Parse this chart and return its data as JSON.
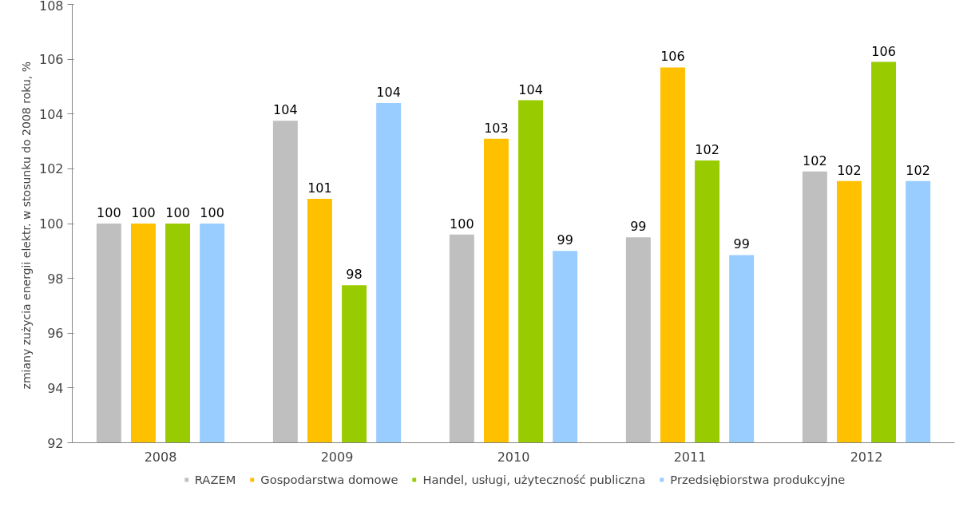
{
  "chart_data": {
    "type": "bar",
    "ylabel": "zmiany  zużycia energii elektr. w stosunku do 2008 roku, %",
    "categories": [
      "2008",
      "2009",
      "2010",
      "2011",
      "2012"
    ],
    "series": [
      {
        "name": "RAZEM",
        "color": "#bfbfbf",
        "values": [
          100,
          103.75,
          99.6,
          99.5,
          101.9
        ],
        "value_labels": [
          "100",
          "104",
          "100",
          "99",
          "102"
        ]
      },
      {
        "name": "Gospodarstwa domowe",
        "color": "#ffc000",
        "values": [
          100,
          100.9,
          103.1,
          105.7,
          101.55
        ],
        "value_labels": [
          "100",
          "101",
          "103",
          "106",
          "102"
        ]
      },
      {
        "name": "Handel, usługi, użyteczność publiczna",
        "color": "#99cc00",
        "values": [
          100,
          97.75,
          104.5,
          102.3,
          105.9
        ],
        "value_labels": [
          "100",
          "98",
          "104",
          "102",
          "106"
        ]
      },
      {
        "name": "Przedsiębiorstwa produkcyjne",
        "color": "#99ccff",
        "values": [
          100,
          104.4,
          99.0,
          98.85,
          101.55
        ],
        "value_labels": [
          "100",
          "104",
          "99",
          "99",
          "102"
        ]
      }
    ],
    "ylim": [
      92,
      108
    ],
    "yticks": [
      92,
      94,
      96,
      98,
      100,
      102,
      104,
      106,
      108
    ],
    "grid": false,
    "legend": "bottom"
  }
}
